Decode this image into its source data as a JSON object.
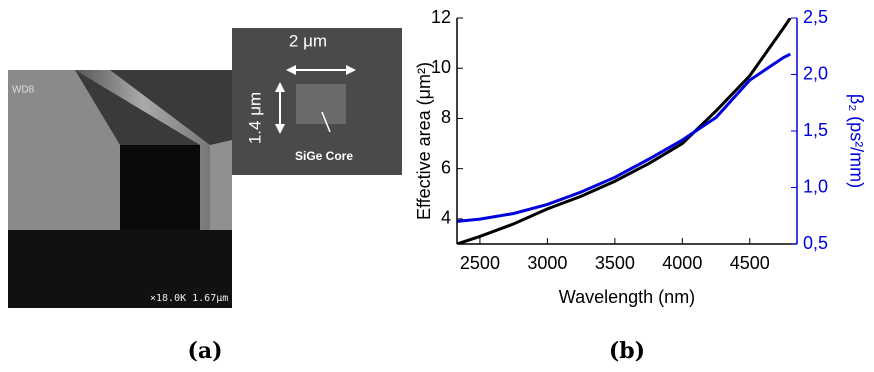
{
  "chart_data": {
    "type": "line",
    "x": [
      2330,
      2500,
      2750,
      3000,
      3250,
      3500,
      3750,
      4000,
      4250,
      4500,
      4750,
      4800
    ],
    "xlim": [
      2330,
      4850
    ],
    "xticks": [
      2500,
      3000,
      3500,
      4000,
      4500
    ],
    "ylim": [
      3,
      12
    ],
    "yticks": [
      4,
      6,
      8,
      10,
      12
    ],
    "y2lim": [
      0.5,
      2.5
    ],
    "y2ticks": [
      {
        "value": 0.5,
        "label": "0,5"
      },
      {
        "value": 1.0,
        "label": "1,0"
      },
      {
        "value": 1.5,
        "label": "1,5"
      },
      {
        "value": 2.0,
        "label": "2,0"
      },
      {
        "value": 2.5,
        "label": "2,5"
      }
    ],
    "xlabel": "Wavelength (nm)",
    "ylabel": "Effective area (μm²)",
    "y2label": "β₂ (ps²/mm)",
    "y2color": "#0000dd",
    "series": [
      {
        "name": "Effective area",
        "color": "#000000",
        "values": [
          3.0,
          3.3,
          3.8,
          4.4,
          4.9,
          5.5,
          6.2,
          7.0,
          8.3,
          9.7,
          11.6,
          12.0
        ]
      },
      {
        "name": "β₂",
        "color": "#0000dd",
        "axis": "y2",
        "values": [
          0.7,
          0.72,
          0.77,
          0.85,
          0.96,
          1.09,
          1.25,
          1.42,
          1.62,
          1.95,
          2.15,
          2.18
        ]
      }
    ]
  },
  "panels": {
    "a": "(a)",
    "b": "(b)"
  },
  "sem": {
    "wd": "WD8",
    "scale": "×18.0K  1.67μm",
    "width": "2 μm",
    "height": "1.4 μm",
    "core": "SiGe Core"
  }
}
